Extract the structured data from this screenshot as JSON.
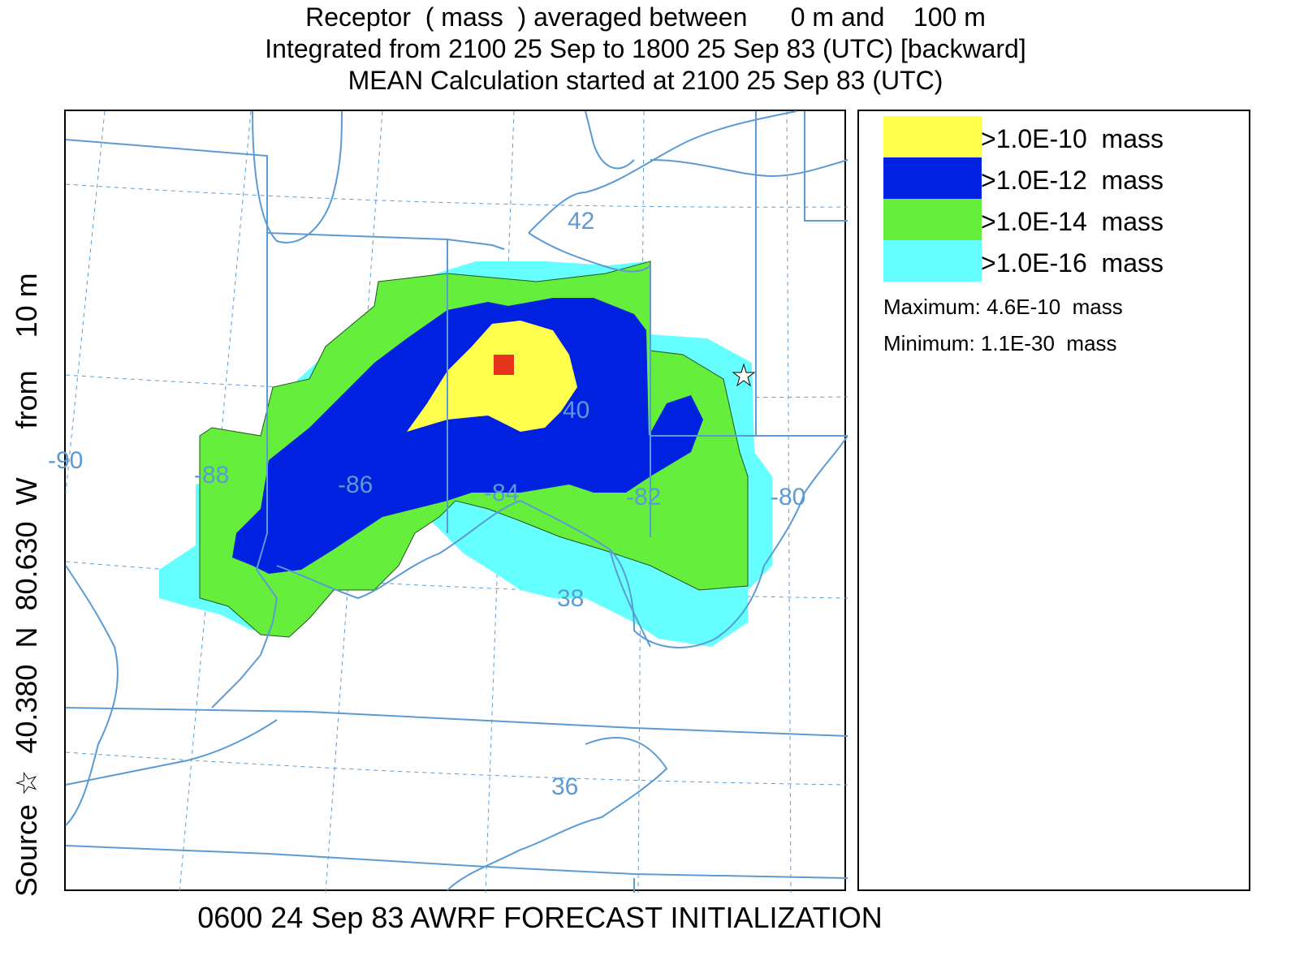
{
  "title": {
    "line1": "Receptor  ( mass  ) averaged between      0 m and    100 m",
    "line2": "Integrated from 2100 25 Sep to 1800 25 Sep 83 (UTC) [backward]",
    "line3": "MEAN Calculation started at 2100 25 Sep 83 (UTC)"
  },
  "side_label": "Source ☆  40.380  N  80.630  W      from    10 m",
  "footer": "0600 24 Sep 83 AWRF FORECAST INITIALIZATION",
  "legend": {
    "items": [
      {
        "label": ">1.0E-10  mass",
        "color": "#ffff4d"
      },
      {
        "label": ">1.0E-12  mass",
        "color": "#0021e0"
      },
      {
        "label": ">1.0E-14  mass",
        "color": "#66ee3d"
      },
      {
        "label": ">1.0E-16  mass",
        "color": "#66ffff"
      }
    ],
    "maximum": "Maximum: 4.6E-10  mass",
    "minimum": "Minimum: 1.1E-30  mass"
  },
  "map": {
    "longitude_labels": [
      "-90",
      "-88",
      "-86",
      "-84",
      "-82",
      "-80"
    ],
    "latitude_labels": [
      "42",
      "40",
      "38",
      "36"
    ],
    "line_color": "#5b9bd5",
    "source_marker": "star",
    "receptor_marker": "red-square",
    "receptor_color": "#e8331c"
  }
}
